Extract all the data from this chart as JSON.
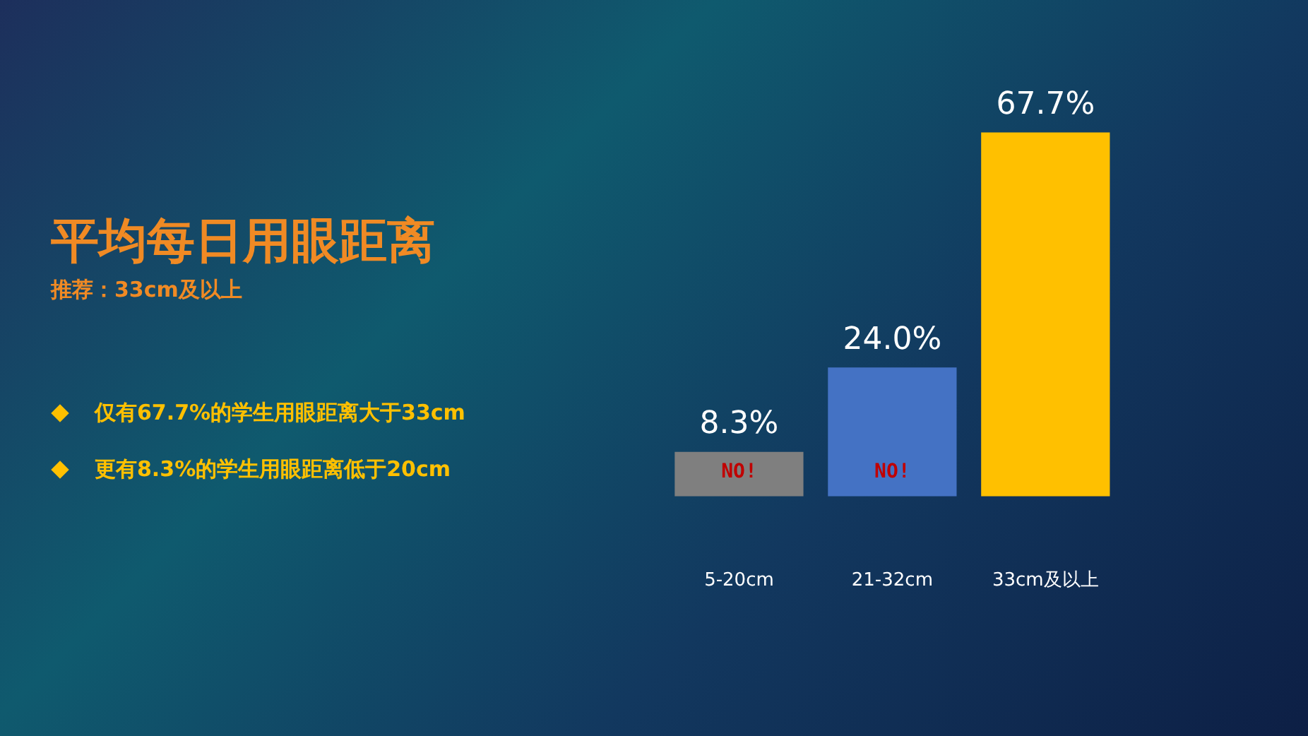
{
  "chart_data": {
    "type": "bar",
    "title": "平均每日用眼距离",
    "subtitle": "推荐：33cm及以上",
    "categories": [
      "5-20cm",
      "21-32cm",
      "33cm及以上"
    ],
    "values": [
      8.3,
      24.0,
      67.7
    ],
    "colors": [
      "#7f7f7f",
      "#4472c4",
      "#ffc000"
    ],
    "value_labels": [
      "8.3%",
      "24.0%",
      "67.7%"
    ],
    "grid": false,
    "legend": false,
    "annotations": [
      "仅有67.7%的学生用眼距离大于33cm",
      "更有8.3%的学生用眼距离低于20cm",
      "NO!",
      "NO!"
    ]
  }
}
